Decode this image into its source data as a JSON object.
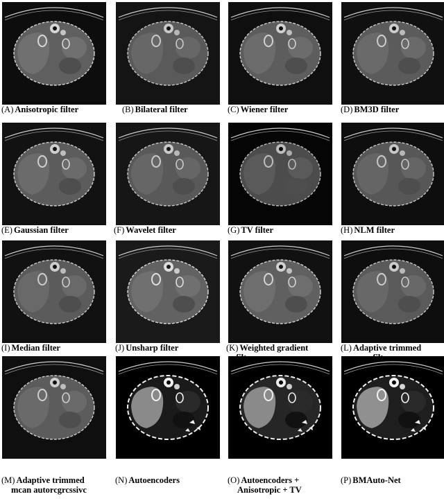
{
  "panels": [
    {
      "letter": "(A)",
      "name": "Anisotropic filter",
      "name2": "",
      "bg": "#0d0d0d",
      "body": "#5f5f5f",
      "liver": "#707070",
      "bright": "#d6d6d6",
      "cr": 0
    },
    {
      "letter": "(B)",
      "name": "Bilateral filter",
      "name2": "",
      "bg": "#141414",
      "body": "#5a5a5a",
      "liver": "#676767",
      "bright": "#c8c8c8",
      "cr": 0
    },
    {
      "letter": "(C)",
      "name": "Wiener filter",
      "name2": "",
      "bg": "#0f0f0f",
      "body": "#5d5d5d",
      "liver": "#6c6c6c",
      "bright": "#d0d0d0",
      "cr": 0
    },
    {
      "letter": "(D)",
      "name": "BM3D filter",
      "name2": "",
      "bg": "#101010",
      "body": "#5b5b5b",
      "liver": "#6a6a6a",
      "bright": "#cccccc",
      "cr": 0
    },
    {
      "letter": "(E)",
      "name": "Gaussian filter",
      "name2": "",
      "bg": "#121212",
      "body": "#5c5c5c",
      "liver": "#6b6b6b",
      "bright": "#cfcfcf",
      "cr": 0
    },
    {
      "letter": "(F)",
      "name": "Wavelet filter",
      "name2": "",
      "bg": "#161616",
      "body": "#595959",
      "liver": "#666666",
      "bright": "#c9c9c9",
      "cr": 0
    },
    {
      "letter": "(G)",
      "name": "TV filter",
      "name2": "",
      "bg": "#050505",
      "body": "#4c4c4c",
      "liver": "#5a5a5a",
      "bright": "#bdbdbd",
      "cr": 0
    },
    {
      "letter": "(H)",
      "name": "NLM filter",
      "name2": "",
      "bg": "#0e0e0e",
      "body": "#575757",
      "liver": "#656565",
      "bright": "#c7c7c7",
      "cr": 0
    },
    {
      "letter": "(I)",
      "name": "Median filter",
      "name2": "",
      "bg": "#111111",
      "body": "#5b5b5b",
      "liver": "#696969",
      "bright": "#cccccc",
      "cr": 0
    },
    {
      "letter": "(J)",
      "name": "Unsharp filter",
      "name2": "",
      "bg": "#1a1a1a",
      "body": "#626262",
      "liver": "#707070",
      "bright": "#dddddd",
      "cr": 0
    },
    {
      "letter": "(K)",
      "name": "Weighted gradient",
      "name2": "filter",
      "bg": "#111111",
      "body": "#606060",
      "liver": "#6e6e6e",
      "bright": "#d2d2d2",
      "cr": 0
    },
    {
      "letter": "(L)",
      "name": "Adaptive trimmed",
      "name2": "mean filter",
      "bg": "#0e0e0e",
      "body": "#5a5a5a",
      "liver": "#686868",
      "bright": "#cacaca",
      "cr": 0
    },
    {
      "letter": "(M)",
      "name": "Adaptive trimmed",
      "name2": "mcan autorcgrcssivc",
      "bg": "#0f0f0f",
      "body": "#5c5c5c",
      "liver": "#6a6a6a",
      "bright": "#cecece",
      "cr": 0
    },
    {
      "letter": "(N)",
      "name": "Autoencoders",
      "name2": "",
      "bg": "#000000",
      "body": "#1a1a1a",
      "liver": "#8a8a8a",
      "bright": "#f2f2f2",
      "cr": 1
    },
    {
      "letter": "(O)",
      "name": "Autoencoders +",
      "name2": "Anisotropic + TV",
      "bg": "#000000",
      "body": "#262626",
      "liver": "#8a8a8a",
      "bright": "#ececec",
      "cr": 1
    },
    {
      "letter": "(P)",
      "name": "BMAuto-Net",
      "name2": "",
      "bg": "#000000",
      "body": "#1e1e1e",
      "liver": "#909090",
      "bright": "#f4f4f4",
      "cr": 1
    }
  ]
}
